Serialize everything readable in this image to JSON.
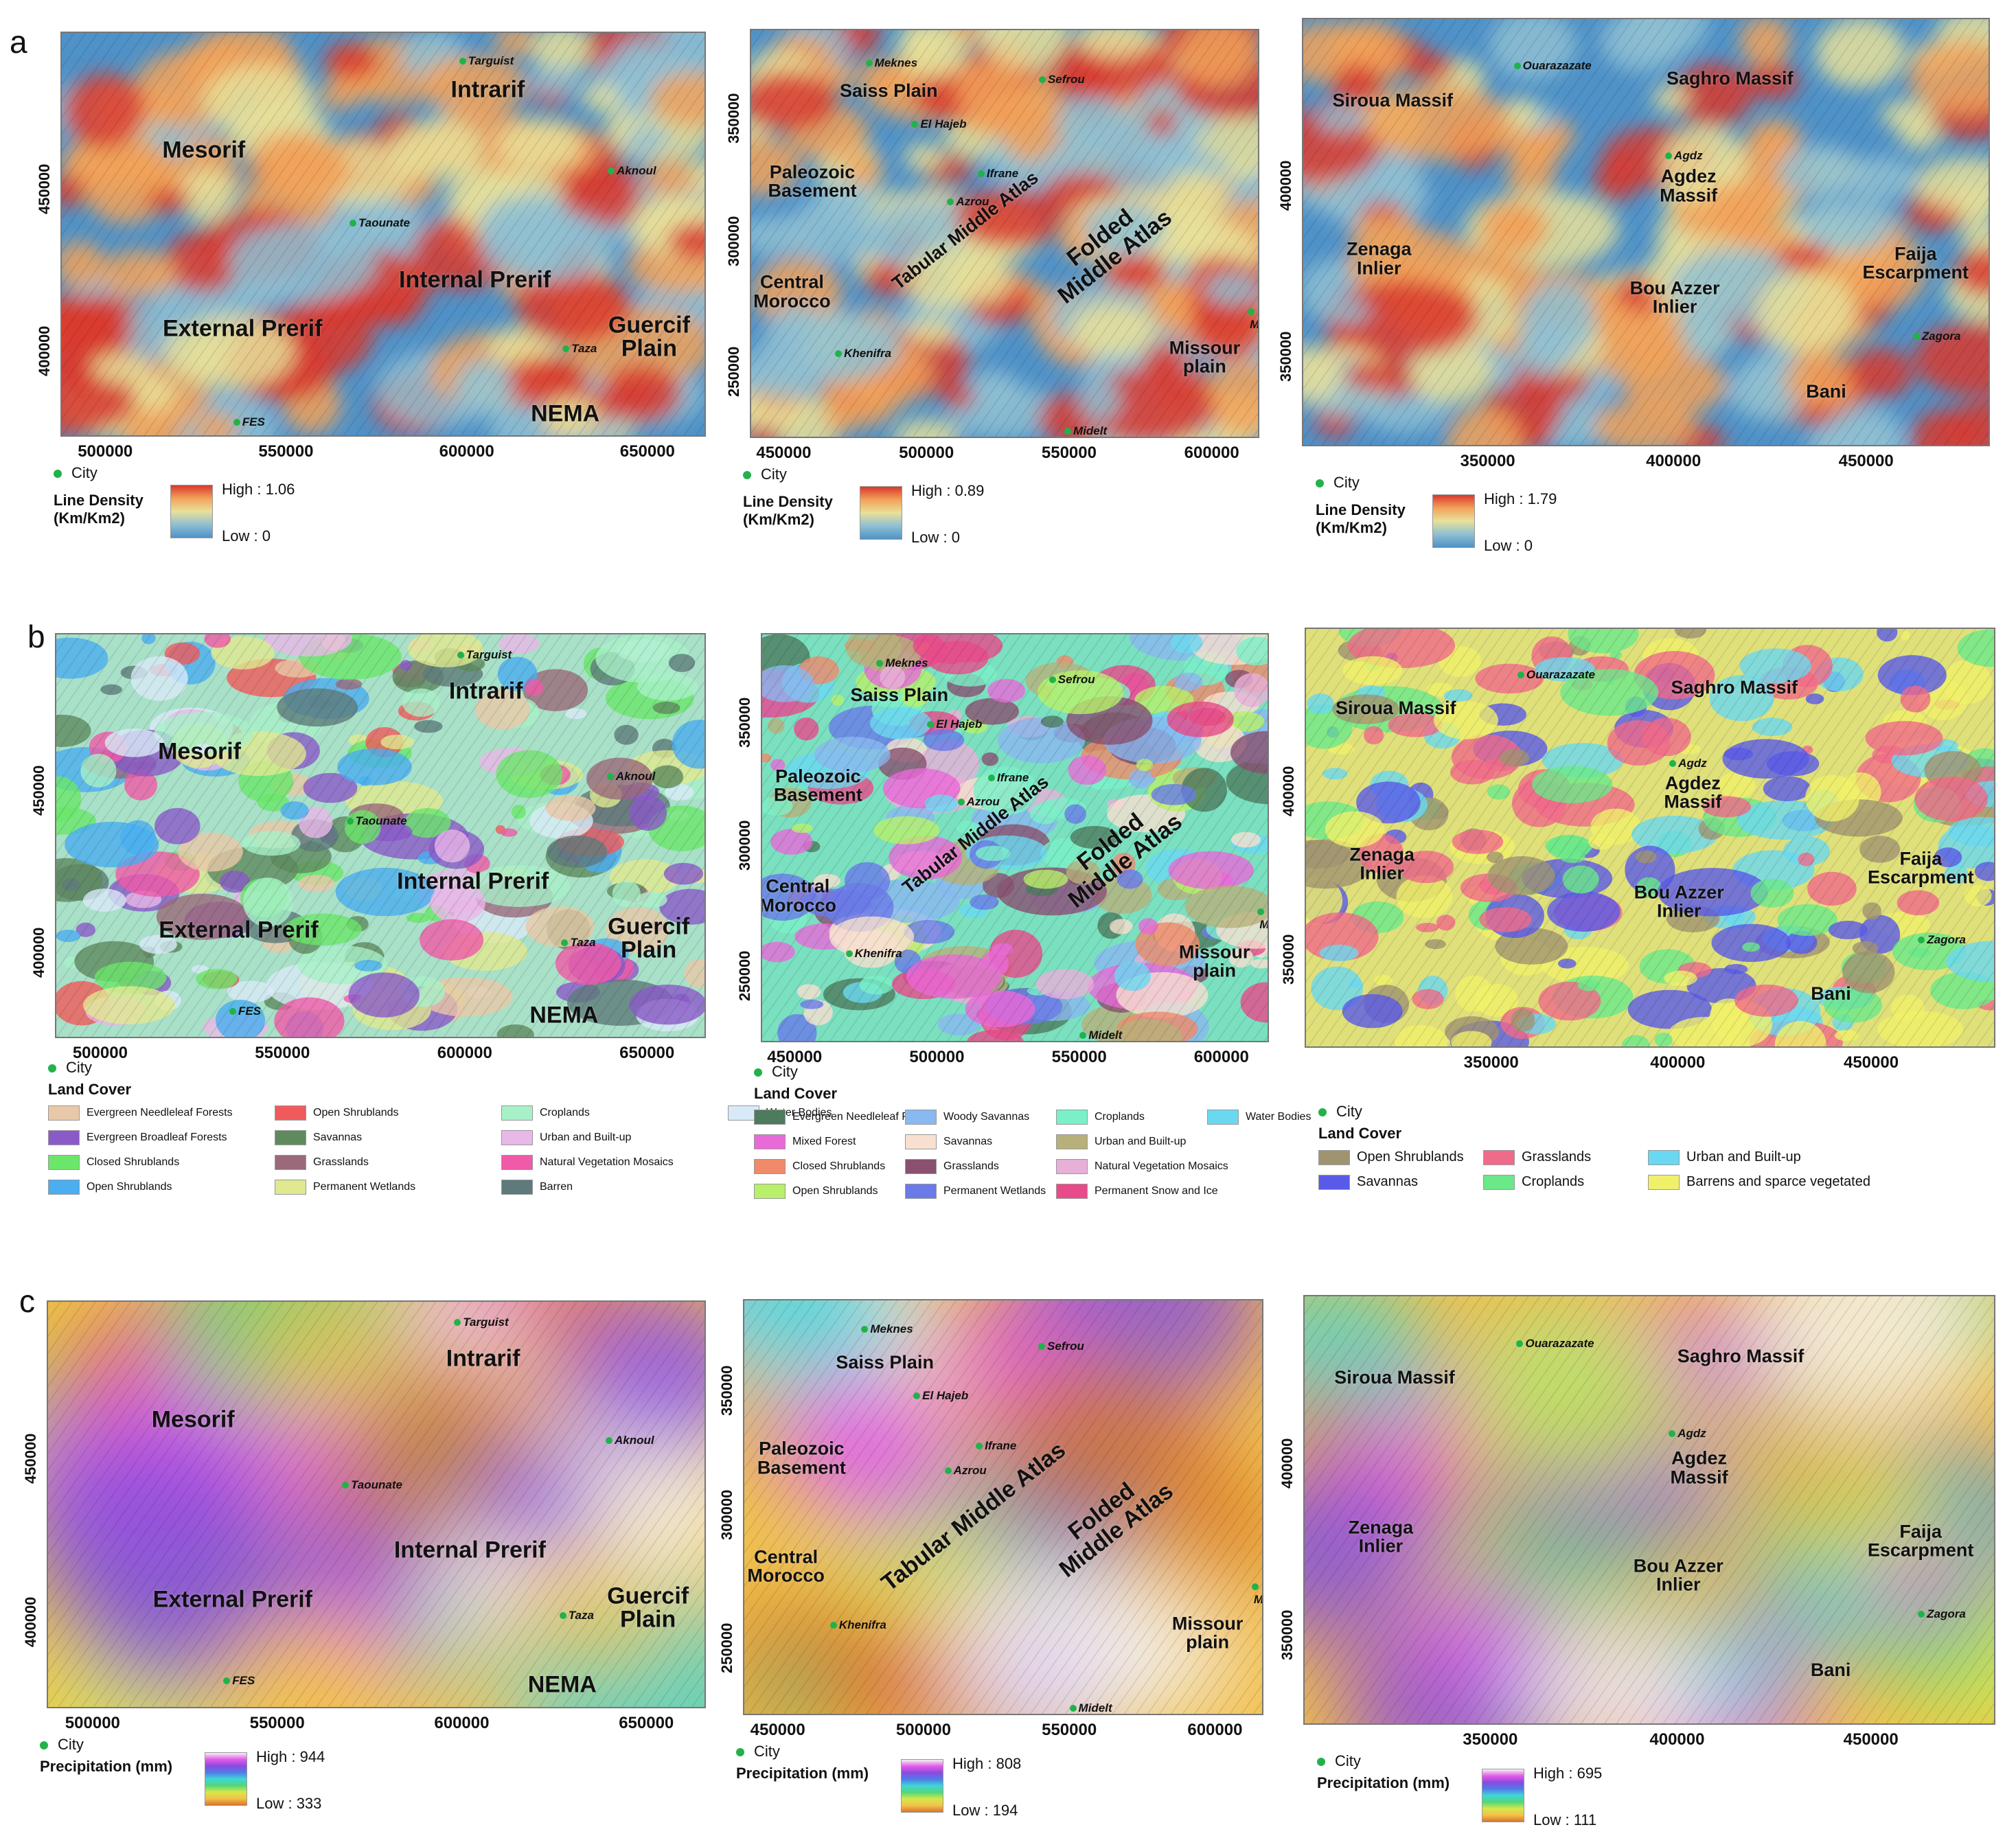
{
  "rows": {
    "a": {
      "label": "a",
      "legend_title": "Line Density\n(Km/Km2)"
    },
    "b": {
      "label": "b",
      "legend_title": "Land Cover"
    },
    "c": {
      "label": "c",
      "legend_title": "Precipitation (mm)"
    }
  },
  "city_key": "City",
  "palettes": {
    "density": [
      "#4f92c8",
      "#8fbfd2",
      "#e8e19a",
      "#f2a25a",
      "#d9382e"
    ],
    "precip": [
      "#d9742c",
      "#f2c24a",
      "#d6e84a",
      "#52d67a",
      "#3fd6d6",
      "#4f7ce8",
      "#8a4ae0",
      "#e45ae8",
      "#f2f2f2"
    ]
  },
  "panels": [
    {
      "id": "a1",
      "labels": [
        {
          "t": "Intrarif",
          "x": 0.66,
          "y": 0.14,
          "s": "big"
        },
        {
          "t": "Mesorif",
          "x": 0.22,
          "y": 0.29,
          "s": "big"
        },
        {
          "t": "Internal Prerif",
          "x": 0.64,
          "y": 0.61,
          "s": "big"
        },
        {
          "t": "External Prerif",
          "x": 0.28,
          "y": 0.73,
          "s": "big"
        },
        {
          "t": "Guercif\nPlain",
          "x": 0.91,
          "y": 0.75,
          "s": "big"
        },
        {
          "t": "NEMA",
          "x": 0.78,
          "y": 0.94,
          "s": "big"
        }
      ],
      "cities": [
        {
          "t": "Targuist",
          "x": 0.62,
          "y": 0.06
        },
        {
          "t": "Aknoul",
          "x": 0.85,
          "y": 0.33
        },
        {
          "t": "Taounate",
          "x": 0.45,
          "y": 0.46
        },
        {
          "t": "Taza",
          "x": 0.78,
          "y": 0.77
        },
        {
          "t": "FES",
          "x": 0.27,
          "y": 0.95
        }
      ],
      "xticks": [
        "500000",
        "550000",
        "600000",
        "650000"
      ],
      "yticks": [
        "450000",
        "400000"
      ],
      "high": "High : 1.06",
      "low": "Low : 0"
    },
    {
      "id": "a2",
      "labels": [
        {
          "t": "Saiss Plain",
          "x": 0.27,
          "y": 0.15,
          "s": "mid"
        },
        {
          "t": "Paleozoic\nBasement",
          "x": 0.12,
          "y": 0.37,
          "s": "mid"
        },
        {
          "t": "Central\nMorocco",
          "x": 0.08,
          "y": 0.64,
          "s": "mid"
        },
        {
          "t": "Tabular Middle Atlas",
          "x": 0.42,
          "y": 0.49,
          "s": "mid",
          "r": 1
        },
        {
          "t": "Folded Middle Atlas",
          "x": 0.7,
          "y": 0.53,
          "s": "big",
          "r": 1
        },
        {
          "t": "Missour\nplain",
          "x": 0.89,
          "y": 0.8,
          "s": "mid"
        }
      ],
      "cities": [
        {
          "t": "Meknes",
          "x": 0.23,
          "y": 0.07
        },
        {
          "t": "Sefrou",
          "x": 0.57,
          "y": 0.11
        },
        {
          "t": "El Hajeb",
          "x": 0.32,
          "y": 0.22
        },
        {
          "t": "Ifrane",
          "x": 0.45,
          "y": 0.34
        },
        {
          "t": "Azrou",
          "x": 0.39,
          "y": 0.41
        },
        {
          "t": "Khenifra",
          "x": 0.17,
          "y": 0.78
        },
        {
          "t": "Missour",
          "x": 0.98,
          "y": 0.68
        },
        {
          "t": "Midelt",
          "x": 0.62,
          "y": 0.97
        }
      ],
      "xticks": [
        "450000",
        "500000",
        "550000",
        "600000"
      ],
      "yticks": [
        "350000",
        "300000",
        "250000"
      ],
      "high": "High : 0.89",
      "low": "Low : 0"
    },
    {
      "id": "a3",
      "labels": [
        {
          "t": "Siroua Massif",
          "x": 0.13,
          "y": 0.19,
          "s": "mid"
        },
        {
          "t": "Saghro Massif",
          "x": 0.62,
          "y": 0.14,
          "s": "mid"
        },
        {
          "t": "Agdez\nMassif",
          "x": 0.56,
          "y": 0.39,
          "s": "mid"
        },
        {
          "t": "Zenaga\nInlier",
          "x": 0.11,
          "y": 0.56,
          "s": "mid"
        },
        {
          "t": "Bou Azzer\nInlier",
          "x": 0.54,
          "y": 0.65,
          "s": "mid"
        },
        {
          "t": "Faija\nEscarpment",
          "x": 0.89,
          "y": 0.57,
          "s": "mid"
        },
        {
          "t": "Bani",
          "x": 0.76,
          "y": 0.87,
          "s": "mid"
        }
      ],
      "cities": [
        {
          "t": "Ouarazazate",
          "x": 0.31,
          "y": 0.1
        },
        {
          "t": "Agdz",
          "x": 0.53,
          "y": 0.31
        },
        {
          "t": "Zagora",
          "x": 0.89,
          "y": 0.73
        }
      ],
      "xticks": [
        "350000",
        "400000",
        "450000"
      ],
      "yticks": [
        "400000",
        "350000"
      ],
      "high": "High : 1.79",
      "low": "Low : 0"
    },
    {
      "id": "b1",
      "labels": [
        {
          "t": "Intrarif",
          "x": 0.66,
          "y": 0.14,
          "s": "big"
        },
        {
          "t": "Mesorif",
          "x": 0.22,
          "y": 0.29,
          "s": "big"
        },
        {
          "t": "Internal Prerif",
          "x": 0.64,
          "y": 0.61,
          "s": "big"
        },
        {
          "t": "External Prerif",
          "x": 0.28,
          "y": 0.73,
          "s": "big"
        },
        {
          "t": "Guercif\nPlain",
          "x": 0.91,
          "y": 0.75,
          "s": "big"
        },
        {
          "t": "NEMA",
          "x": 0.78,
          "y": 0.94,
          "s": "big"
        }
      ],
      "cities": [
        {
          "t": "Targuist",
          "x": 0.62,
          "y": 0.04
        },
        {
          "t": "Aknoul",
          "x": 0.85,
          "y": 0.34
        },
        {
          "t": "Taounate",
          "x": 0.45,
          "y": 0.45
        },
        {
          "t": "Taza",
          "x": 0.78,
          "y": 0.75
        },
        {
          "t": "FES",
          "x": 0.27,
          "y": 0.92
        }
      ],
      "xticks": [
        "500000",
        "550000",
        "600000",
        "650000"
      ],
      "yticks": [
        "450000",
        "400000"
      ],
      "legend": [
        {
          "t": "Evergreen Needleleaf Forests",
          "c": "#e8c8a8"
        },
        {
          "t": "Evergreen Broadleaf Forests",
          "c": "#8a5ac8"
        },
        {
          "t": "Closed Shrublands",
          "c": "#6ae66a"
        },
        {
          "t": "Open Shrublands",
          "c": "#4aaef0"
        },
        {
          "t": "Open Shrublands",
          "c": "#f05a5a"
        },
        {
          "t": "Savannas",
          "c": "#5e8a5e"
        },
        {
          "t": "Grasslands",
          "c": "#9a6a7a"
        },
        {
          "t": "Permanent Wetlands",
          "c": "#e0e890"
        },
        {
          "t": "Croplands",
          "c": "#a8f0c8"
        },
        {
          "t": "Urban and Built-up",
          "c": "#e8b8e8"
        },
        {
          "t": "Natural Vegetation Mosaics",
          "c": "#f05aa8"
        },
        {
          "t": "Barren",
          "c": "#5e7a7a"
        },
        {
          "t": "Water Bodies",
          "c": "#d8eaf8"
        }
      ]
    },
    {
      "id": "b2",
      "labels": [
        {
          "t": "Saiss Plain",
          "x": 0.27,
          "y": 0.15,
          "s": "mid"
        },
        {
          "t": "Paleozoic\nBasement",
          "x": 0.11,
          "y": 0.37,
          "s": "mid"
        },
        {
          "t": "Central\nMorocco",
          "x": 0.07,
          "y": 0.64,
          "s": "mid"
        },
        {
          "t": "Tabular Middle Atlas",
          "x": 0.42,
          "y": 0.49,
          "s": "mid",
          "r": 1
        },
        {
          "t": "Folded Middle Atlas",
          "x": 0.7,
          "y": 0.53,
          "s": "big",
          "r": 1
        },
        {
          "t": "Missour\nplain",
          "x": 0.89,
          "y": 0.8,
          "s": "mid"
        }
      ],
      "cities": [
        {
          "t": "Meknes",
          "x": 0.23,
          "y": 0.06
        },
        {
          "t": "Sefrou",
          "x": 0.57,
          "y": 0.1
        },
        {
          "t": "El Hajeb",
          "x": 0.33,
          "y": 0.21
        },
        {
          "t": "Ifrane",
          "x": 0.45,
          "y": 0.34
        },
        {
          "t": "Azrou",
          "x": 0.39,
          "y": 0.4
        },
        {
          "t": "Khenifra",
          "x": 0.17,
          "y": 0.77
        },
        {
          "t": "Missour",
          "x": 0.98,
          "y": 0.67
        },
        {
          "t": "Midelt",
          "x": 0.63,
          "y": 0.97
        }
      ],
      "xticks": [
        "450000",
        "500000",
        "550000",
        "600000"
      ],
      "yticks": [
        "350000",
        "300000",
        "250000"
      ],
      "legend": [
        {
          "t": "Evergreen Needleleaf Forest",
          "c": "#4e7a5e"
        },
        {
          "t": "Mixed Forest",
          "c": "#e86ad8"
        },
        {
          "t": "Closed Shrublands",
          "c": "#f08a6a"
        },
        {
          "t": "Open Shrublands",
          "c": "#b8f06a"
        },
        {
          "t": "Woody Savannas",
          "c": "#8ab8f0"
        },
        {
          "t": "Savannas",
          "c": "#f8e0d0"
        },
        {
          "t": "Grasslands",
          "c": "#8a5070"
        },
        {
          "t": "Permanent Wetlands",
          "c": "#6a7ae8"
        },
        {
          "t": "Croplands",
          "c": "#7af0c8"
        },
        {
          "t": "Urban and Built-up",
          "c": "#b8b07a"
        },
        {
          "t": "Natural Vegetation Mosaics",
          "c": "#e8b0d8"
        },
        {
          "t": "Permanent Snow and Ice",
          "c": "#e84a8a"
        },
        {
          "t": "Water Bodies",
          "c": "#6ad8f0"
        }
      ]
    },
    {
      "id": "b3",
      "labels": [
        {
          "t": "Siroua Massif",
          "x": 0.13,
          "y": 0.19,
          "s": "mid"
        },
        {
          "t": "Saghro Massif",
          "x": 0.62,
          "y": 0.14,
          "s": "mid"
        },
        {
          "t": "Agdez\nMassif",
          "x": 0.56,
          "y": 0.39,
          "s": "mid"
        },
        {
          "t": "Zenaga\nInlier",
          "x": 0.11,
          "y": 0.56,
          "s": "mid"
        },
        {
          "t": "Bou Azzer\nInlier",
          "x": 0.54,
          "y": 0.65,
          "s": "mid"
        },
        {
          "t": "Faija\nEscarpment",
          "x": 0.89,
          "y": 0.57,
          "s": "mid"
        },
        {
          "t": "Bani",
          "x": 0.76,
          "y": 0.87,
          "s": "mid"
        }
      ],
      "cities": [
        {
          "t": "Ouarazazate",
          "x": 0.31,
          "y": 0.1
        },
        {
          "t": "Agdz",
          "x": 0.53,
          "y": 0.31
        },
        {
          "t": "Zagora",
          "x": 0.89,
          "y": 0.73
        }
      ],
      "xticks": [
        "350000",
        "400000",
        "450000"
      ],
      "yticks": [
        "400000",
        "350000"
      ],
      "legend": [
        {
          "t": "Open Shrublands",
          "c": "#a09470"
        },
        {
          "t": "Savannas",
          "c": "#5a5ae8"
        },
        {
          "t": "Grasslands",
          "c": "#f06a8a"
        },
        {
          "t": "Croplands",
          "c": "#6ae88a"
        },
        {
          "t": "Urban and Built-up",
          "c": "#6ad8f0"
        },
        {
          "t": "Barrens and sparce vegetated",
          "c": "#f0f06a"
        }
      ]
    },
    {
      "id": "c1",
      "labels": [
        {
          "t": "Intrarif",
          "x": 0.66,
          "y": 0.14,
          "s": "big"
        },
        {
          "t": "Mesorif",
          "x": 0.22,
          "y": 0.29,
          "s": "big"
        },
        {
          "t": "Internal Prerif",
          "x": 0.64,
          "y": 0.61,
          "s": "big"
        },
        {
          "t": "External Prerif",
          "x": 0.28,
          "y": 0.73,
          "s": "big"
        },
        {
          "t": "Guercif\nPlain",
          "x": 0.91,
          "y": 0.75,
          "s": "big"
        },
        {
          "t": "NEMA",
          "x": 0.78,
          "y": 0.94,
          "s": "big"
        }
      ],
      "cities": [
        {
          "t": "Targuist",
          "x": 0.62,
          "y": 0.04
        },
        {
          "t": "Aknoul",
          "x": 0.85,
          "y": 0.33
        },
        {
          "t": "Taounate",
          "x": 0.45,
          "y": 0.44
        },
        {
          "t": "Taza",
          "x": 0.78,
          "y": 0.76
        },
        {
          "t": "FES",
          "x": 0.27,
          "y": 0.92
        }
      ],
      "xticks": [
        "500000",
        "550000",
        "600000",
        "650000"
      ],
      "yticks": [
        "450000",
        "400000"
      ],
      "high": "High : 944",
      "low": "Low : 333"
    },
    {
      "id": "c2",
      "labels": [
        {
          "t": "Saiss Plain",
          "x": 0.27,
          "y": 0.15,
          "s": "mid"
        },
        {
          "t": "Paleozoic\nBasement",
          "x": 0.11,
          "y": 0.38,
          "s": "mid"
        },
        {
          "t": "Central\nMorocco",
          "x": 0.08,
          "y": 0.64,
          "s": "mid"
        },
        {
          "t": "Tabular Middle Atlas",
          "x": 0.44,
          "y": 0.52,
          "s": "big",
          "r": 1
        },
        {
          "t": "Folded Middle Atlas",
          "x": 0.7,
          "y": 0.53,
          "s": "big",
          "r": 1
        },
        {
          "t": "Missour\nplain",
          "x": 0.89,
          "y": 0.8,
          "s": "mid"
        }
      ],
      "cities": [
        {
          "t": "Meknes",
          "x": 0.23,
          "y": 0.06
        },
        {
          "t": "Sefrou",
          "x": 0.57,
          "y": 0.1
        },
        {
          "t": "El Hajeb",
          "x": 0.33,
          "y": 0.22
        },
        {
          "t": "Ifrane",
          "x": 0.45,
          "y": 0.34
        },
        {
          "t": "Azrou",
          "x": 0.39,
          "y": 0.4
        },
        {
          "t": "Khenifra",
          "x": 0.17,
          "y": 0.77
        },
        {
          "t": "Missour",
          "x": 0.98,
          "y": 0.68
        },
        {
          "t": "Midelt",
          "x": 0.63,
          "y": 0.97
        }
      ],
      "xticks": [
        "450000",
        "500000",
        "550000",
        "600000"
      ],
      "yticks": [
        "350000",
        "300000",
        "250000"
      ],
      "high": "High : 808",
      "low": "Low : 194"
    },
    {
      "id": "c3",
      "labels": [
        {
          "t": "Siroua Massif",
          "x": 0.13,
          "y": 0.19,
          "s": "mid"
        },
        {
          "t": "Saghro Massif",
          "x": 0.63,
          "y": 0.14,
          "s": "mid"
        },
        {
          "t": "Agdez\nMassif",
          "x": 0.57,
          "y": 0.4,
          "s": "mid"
        },
        {
          "t": "Zenaga\nInlier",
          "x": 0.11,
          "y": 0.56,
          "s": "mid"
        },
        {
          "t": "Bou Azzer\nInlier",
          "x": 0.54,
          "y": 0.65,
          "s": "mid"
        },
        {
          "t": "Faija\nEscarpment",
          "x": 0.89,
          "y": 0.57,
          "s": "mid"
        },
        {
          "t": "Bani",
          "x": 0.76,
          "y": 0.87,
          "s": "mid"
        }
      ],
      "cities": [
        {
          "t": "Ouarazazate",
          "x": 0.31,
          "y": 0.1
        },
        {
          "t": "Agdz",
          "x": 0.53,
          "y": 0.31
        },
        {
          "t": "Zagora",
          "x": 0.89,
          "y": 0.73
        }
      ],
      "xticks": [
        "350000",
        "400000",
        "450000"
      ],
      "yticks": [
        "400000",
        "350000"
      ],
      "high": "High : 695",
      "low": "Low : 111"
    }
  ]
}
